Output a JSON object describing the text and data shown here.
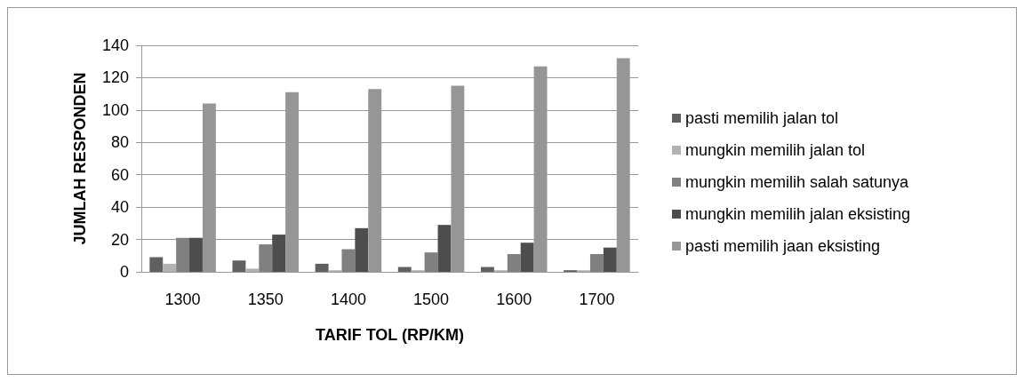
{
  "chart_data": {
    "type": "bar",
    "xlabel": "TARIF TOL (RP/KM)",
    "ylabel": "JUMLAH RESPONDEN",
    "categories": [
      "1300",
      "1350",
      "1400",
      "1500",
      "1600",
      "1700"
    ],
    "series": [
      {
        "name": "pasti memilih jalan tol",
        "color": "#606060",
        "values": [
          9,
          7,
          5,
          3,
          3,
          1
        ]
      },
      {
        "name": "mungkin memilih jalan tol",
        "color": "#b2b2b2",
        "values": [
          5,
          2,
          1,
          1,
          1,
          1
        ]
      },
      {
        "name": "mungkin memilih salah satunya",
        "color": "#808080",
        "values": [
          21,
          17,
          14,
          12,
          11,
          11
        ]
      },
      {
        "name": "mungkin memilih jalan eksisting",
        "color": "#4d4d4d",
        "values": [
          21,
          23,
          27,
          29,
          18,
          15
        ]
      },
      {
        "name": "pasti memilih jaan eksisting",
        "color": "#969696",
        "values": [
          104,
          111,
          113,
          115,
          127,
          132
        ]
      }
    ],
    "ylim": [
      0,
      140
    ],
    "yticks": [
      0,
      20,
      40,
      60,
      80,
      100,
      120,
      140
    ],
    "grid": "y",
    "legend": "right"
  }
}
